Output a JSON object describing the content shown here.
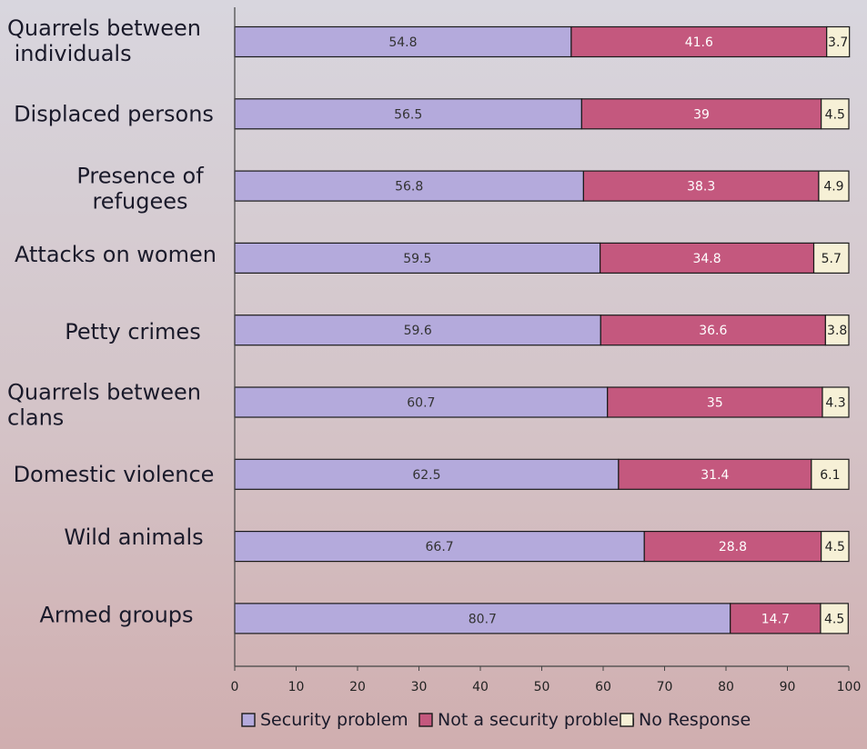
{
  "chart_data": {
    "type": "bar",
    "orientation": "horizontal",
    "stacked": true,
    "categories": [
      "Quarrels between individuals",
      "Displaced persons",
      "Presence of refugees",
      "Attacks on women",
      "Petty crimes",
      "Quarrels between clans",
      "Domestic violence",
      "Wild animals",
      "Armed groups"
    ],
    "category_lines": [
      [
        "Quarrels between",
        " individuals"
      ],
      [
        "Displaced persons"
      ],
      [
        "Presence of",
        "refugees"
      ],
      [
        "Attacks on women"
      ],
      [
        "Petty crimes"
      ],
      [
        "Quarrels between",
        "clans"
      ],
      [
        "Domestic violence"
      ],
      [
        "Wild animals"
      ],
      [
        "Armed groups"
      ]
    ],
    "series": [
      {
        "name": "Security problem",
        "color": "#b4aadc",
        "label_color": "#333333",
        "values": [
          54.8,
          56.5,
          56.8,
          59.5,
          59.6,
          60.7,
          62.5,
          66.7,
          80.7
        ]
      },
      {
        "name": "Not a security problem",
        "color": "#c4587e",
        "label_color": "#ffffff",
        "values": [
          41.6,
          39,
          38.3,
          34.8,
          36.6,
          35,
          31.4,
          28.8,
          14.7
        ]
      },
      {
        "name": "No Response",
        "color": "#f6f0d6",
        "label_color": "#222222",
        "values": [
          3.7,
          4.5,
          4.9,
          5.7,
          3.8,
          4.3,
          6.1,
          4.5,
          4.5
        ]
      }
    ],
    "x_ticks": [
      0,
      10,
      20,
      30,
      40,
      50,
      60,
      70,
      80,
      90,
      100
    ],
    "xlim": [
      0,
      100
    ],
    "title": "",
    "xlabel": "",
    "ylabel": "",
    "grid": false,
    "legend_position": "bottom"
  }
}
